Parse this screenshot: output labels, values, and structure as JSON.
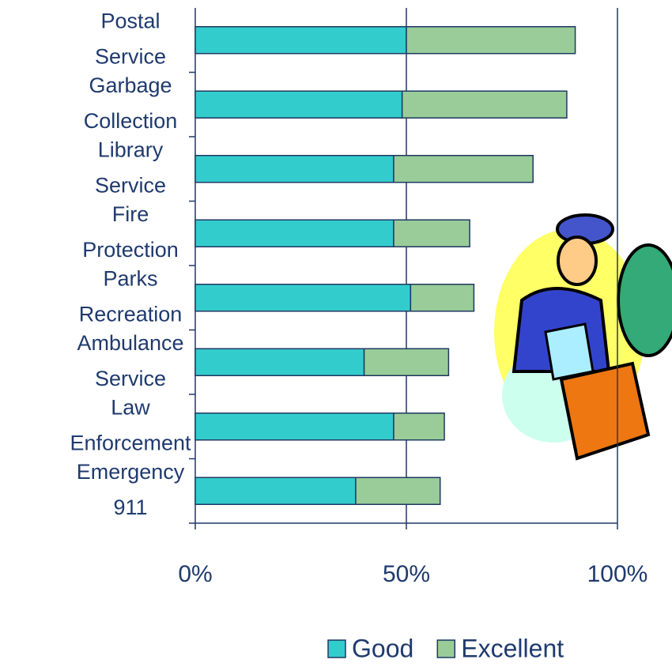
{
  "chart_data": {
    "type": "stacked-barh",
    "categories": [
      "Postal Service",
      "Garbage Collection",
      "Library Service",
      "Fire Protection",
      "Parks Recreation",
      "Ambulance Service",
      "Law Enforcement",
      "Emergency 911"
    ],
    "series": [
      {
        "name": "Good",
        "color": "#33cccc",
        "values": [
          50,
          49,
          47,
          47,
          51,
          40,
          47,
          38
        ]
      },
      {
        "name": "Excellent",
        "color": "#99cc99",
        "values": [
          40,
          39,
          33,
          18,
          15,
          20,
          12,
          20
        ]
      }
    ],
    "xlim": [
      0,
      100
    ],
    "xticks": [
      {
        "value": 0,
        "label": "0%"
      },
      {
        "value": 50,
        "label": "50%"
      },
      {
        "value": 100,
        "label": "100%"
      }
    ],
    "grid": true,
    "legend": "bottom"
  }
}
